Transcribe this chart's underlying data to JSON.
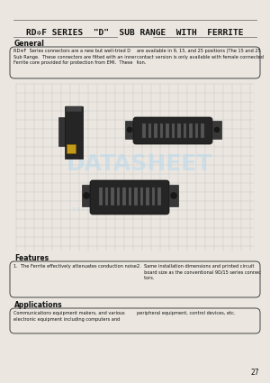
{
  "title": "RD✲F SERIES  \"D\"  SUB RANGE  WITH  FERRITE",
  "bg_color": "#ebe7e0",
  "section_general": "General",
  "section_features": "Features",
  "section_applications": "Applications",
  "gen_text_left": "RD✲F  Series connectors are a new but well-tried D\nSub Range.  These connectors are fitted with an inner\nFerrite core provided for protection from EMI.  These",
  "gen_text_right": "are available in 9, 15, and 25 positions (The 15 and 25\ncontact version is only available with female connected\ntion.",
  "feat_text_left": "1.  The Ferrite effectively attenuates conduction noise.",
  "feat_text_right": "2.  Same installation dimensions and printed circuit\n     board size as the conventional 9D/15 series connec\n     tors.",
  "app_text_left": "Communications equipment makers, and various\nelectronic equipment including computers and",
  "app_text_right": "peripheral equipment, control devices, etc.",
  "page_number": "27",
  "text_color": "#111111",
  "box_color": "#444444",
  "line_color": "#777777",
  "grid_color": "#c8c8c8",
  "watermark_color": "#b8d8ee"
}
